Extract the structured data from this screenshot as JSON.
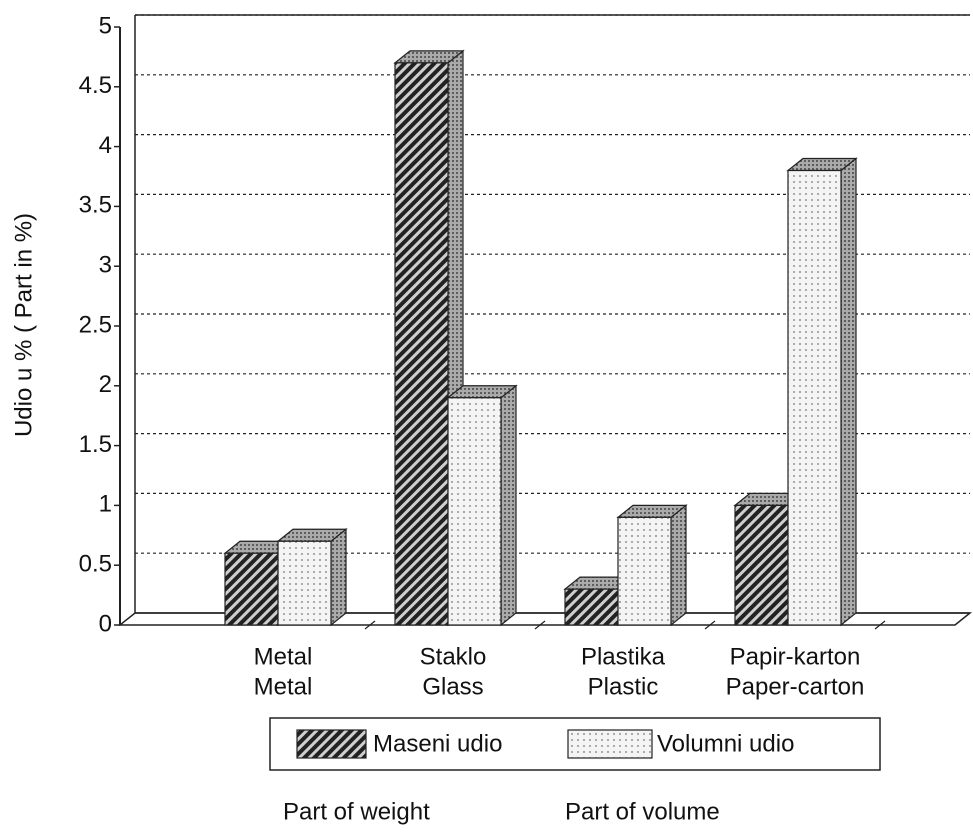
{
  "chart_data": {
    "type": "bar",
    "y_label": "Udio u % ( Part in %)",
    "categories": [
      [
        "Metal",
        "Metal"
      ],
      [
        "Staklo",
        "Glass"
      ],
      [
        "Plastika",
        "Plastic"
      ],
      [
        "Papir-karton",
        "Paper-carton"
      ]
    ],
    "series": [
      {
        "name": "Maseni udio",
        "subtitle": "Part of weight",
        "color": "#2a2a2a",
        "values": [
          0.6,
          4.7,
          0.3,
          1.0
        ]
      },
      {
        "name": "Volumni udio",
        "subtitle": "Part of volume",
        "color": "#f2f2f2",
        "values": [
          0.7,
          1.9,
          0.9,
          3.8
        ]
      }
    ],
    "ylim": [
      0,
      5
    ],
    "yticks": [
      0,
      0.5,
      1,
      1.5,
      2,
      2.5,
      3,
      3.5,
      4,
      4.5,
      5
    ],
    "grid": true
  }
}
